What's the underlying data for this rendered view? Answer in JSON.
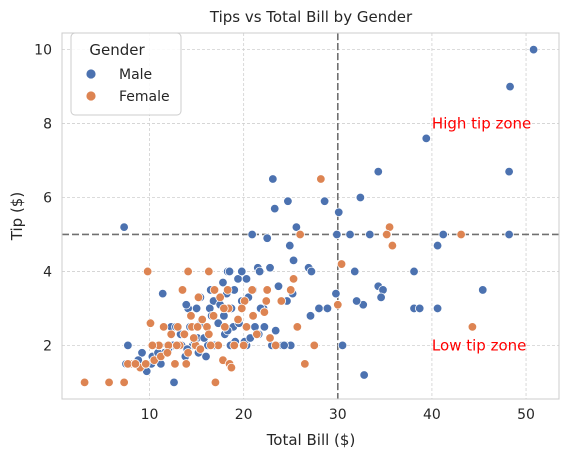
{
  "chart_data": {
    "type": "scatter",
    "title": "Tips vs Total Bill by Gender",
    "xlabel": "Total Bill ($)",
    "ylabel": "Tip ($)",
    "xlim": [
      0.7,
      53.5
    ],
    "ylim": [
      0.55,
      10.45
    ],
    "xticks": [
      10,
      20,
      30,
      40,
      50
    ],
    "yticks": [
      2,
      4,
      6,
      8,
      10
    ],
    "grid": true,
    "legend": {
      "title": "Gender",
      "position": "top-left",
      "entries": [
        "Male",
        "Female"
      ]
    },
    "reference_lines": [
      {
        "orientation": "vertical",
        "value": 30
      },
      {
        "orientation": "horizontal",
        "value": 5
      }
    ],
    "annotations": [
      {
        "text": "High tip zone",
        "x": 40,
        "y": 8,
        "color": "#ff0000"
      },
      {
        "text": "Low tip zone",
        "x": 40,
        "y": 2,
        "color": "#ff0000"
      }
    ],
    "series": [
      {
        "name": "Male",
        "color": "#4c72b0",
        "points": [
          [
            50.8,
            10.0
          ],
          [
            48.3,
            9.0
          ],
          [
            39.4,
            7.6
          ],
          [
            48.2,
            6.7
          ],
          [
            34.3,
            6.7
          ],
          [
            23.1,
            6.5
          ],
          [
            32.4,
            6.0
          ],
          [
            28.6,
            5.9
          ],
          [
            24.7,
            5.9
          ],
          [
            7.3,
            5.2
          ],
          [
            25.6,
            5.2
          ],
          [
            30.1,
            5.6
          ],
          [
            23.3,
            5.7
          ],
          [
            29.9,
            5.0
          ],
          [
            31.3,
            5.0
          ],
          [
            41.2,
            5.0
          ],
          [
            48.2,
            5.0
          ],
          [
            40.6,
            4.7
          ],
          [
            33.4,
            5.0
          ],
          [
            20.9,
            5.0
          ],
          [
            22.5,
            4.9
          ],
          [
            24.9,
            4.7
          ],
          [
            25.3,
            4.3
          ],
          [
            26.9,
            4.1
          ],
          [
            27.2,
            4.0
          ],
          [
            38.1,
            4.0
          ],
          [
            31.8,
            4.0
          ],
          [
            29.8,
            3.4
          ],
          [
            34.3,
            3.6
          ],
          [
            34.8,
            3.5
          ],
          [
            21.5,
            4.1
          ],
          [
            22.8,
            4.1
          ],
          [
            21.7,
            4.0
          ],
          [
            19.4,
            3.8
          ],
          [
            20.3,
            3.8
          ],
          [
            18.3,
            4.0
          ],
          [
            18.5,
            4.0
          ],
          [
            17.8,
            3.7
          ],
          [
            16.5,
            3.5
          ],
          [
            20.9,
            3.5
          ],
          [
            23.7,
            3.6
          ],
          [
            25.2,
            3.4
          ],
          [
            21.0,
            3.5
          ],
          [
            18.2,
            3.4
          ],
          [
            15.4,
            3.3
          ],
          [
            14.1,
            3.0
          ],
          [
            13.9,
            3.1
          ],
          [
            16.8,
            3.2
          ],
          [
            15.0,
            3.0
          ],
          [
            16.4,
            3.0
          ],
          [
            18.7,
            3.0
          ],
          [
            19.8,
            3.2
          ],
          [
            20.5,
            3.3
          ],
          [
            22.1,
            3.0
          ],
          [
            24.6,
            3.2
          ],
          [
            28.0,
            3.0
          ],
          [
            28.9,
            3.0
          ],
          [
            32.7,
            3.1
          ],
          [
            34.6,
            3.3
          ],
          [
            38.1,
            3.0
          ],
          [
            38.7,
            3.0
          ],
          [
            40.6,
            3.0
          ],
          [
            45.4,
            3.5
          ],
          [
            32.0,
            3.2
          ],
          [
            11.4,
            3.4
          ],
          [
            13.0,
            2.5
          ],
          [
            13.4,
            2.0
          ],
          [
            14.3,
            2.5
          ],
          [
            15.1,
            2.2
          ],
          [
            16.2,
            2.0
          ],
          [
            17.3,
            2.6
          ],
          [
            18.0,
            2.3
          ],
          [
            18.9,
            2.5
          ],
          [
            19.5,
            2.6
          ],
          [
            20.3,
            2.0
          ],
          [
            21.2,
            2.5
          ],
          [
            22.2,
            2.5
          ],
          [
            23.0,
            2.0
          ],
          [
            24.1,
            2.0
          ],
          [
            24.5,
            2.0
          ],
          [
            25.0,
            2.0
          ],
          [
            27.1,
            2.8
          ],
          [
            30.5,
            2.0
          ],
          [
            32.8,
            1.2
          ],
          [
            12.6,
            1.0
          ],
          [
            7.7,
            2.0
          ],
          [
            8.3,
            1.5
          ],
          [
            9.2,
            1.8
          ],
          [
            9.7,
            1.3
          ],
          [
            10.3,
            1.7
          ],
          [
            10.7,
            1.6
          ],
          [
            11.2,
            1.5
          ],
          [
            11.9,
            2.0
          ],
          [
            12.5,
            2.0
          ],
          [
            13.3,
            2.3
          ],
          [
            14.6,
            2.0
          ],
          [
            15.5,
            2.6
          ],
          [
            16.9,
            2.0
          ],
          [
            17.9,
            2.8
          ],
          [
            18.3,
            2.4
          ],
          [
            19.1,
            2.1
          ],
          [
            20.1,
            2.1
          ],
          [
            20.7,
            2.2
          ],
          [
            21.6,
            2.3
          ],
          [
            22.8,
            2.2
          ],
          [
            23.4,
            2.4
          ],
          [
            24.3,
            2.0
          ],
          [
            12.0,
            1.9
          ],
          [
            11.6,
            1.8
          ],
          [
            10.9,
            1.8
          ],
          [
            10.2,
            1.5
          ],
          [
            9.6,
            1.5
          ],
          [
            8.8,
            1.6
          ],
          [
            13.8,
            1.7
          ],
          [
            14.8,
            2.1
          ],
          [
            15.8,
            2.2
          ],
          [
            16.6,
            2.8
          ],
          [
            17.5,
            3.1
          ],
          [
            19.0,
            3.5
          ],
          [
            19.8,
            4.0
          ],
          [
            21.8,
            3.0
          ],
          [
            12.3,
            2.5
          ],
          [
            13.0,
            2.0
          ],
          [
            14.0,
            1.9
          ],
          [
            15.2,
            1.8
          ],
          [
            16.0,
            1.7
          ],
          [
            18.6,
            2.0
          ],
          [
            7.5,
            1.5
          ],
          [
            11.0,
            2.0
          ],
          [
            12.8,
            2.5
          ]
        ]
      },
      {
        "name": "Female",
        "color": "#dd8452",
        "points": [
          [
            28.2,
            6.5
          ],
          [
            35.5,
            5.2
          ],
          [
            35.2,
            5.0
          ],
          [
            43.1,
            5.0
          ],
          [
            35.8,
            4.7
          ],
          [
            26.0,
            5.0
          ],
          [
            30.4,
            4.2
          ],
          [
            25.3,
            3.8
          ],
          [
            30.0,
            3.1
          ],
          [
            9.8,
            4.0
          ],
          [
            14.1,
            4.0
          ],
          [
            16.3,
            4.0
          ],
          [
            18.3,
            3.5
          ],
          [
            18.4,
            3.0
          ],
          [
            20.9,
            3.5
          ],
          [
            20.1,
            3.2
          ],
          [
            22.5,
            3.5
          ],
          [
            22.4,
            3.2
          ],
          [
            24.0,
            3.2
          ],
          [
            25.0,
            3.5
          ],
          [
            16.9,
            3.5
          ],
          [
            15.2,
            3.3
          ],
          [
            13.5,
            3.5
          ],
          [
            17.5,
            3.3
          ],
          [
            19.4,
            2.7
          ],
          [
            20.3,
            2.5
          ],
          [
            21.0,
            2.8
          ],
          [
            22.2,
            2.9
          ],
          [
            25.7,
            2.5
          ],
          [
            27.5,
            2.0
          ],
          [
            26.5,
            1.5
          ],
          [
            44.3,
            2.5
          ],
          [
            10.1,
            2.6
          ],
          [
            11.5,
            2.5
          ],
          [
            12.3,
            2.3
          ],
          [
            13.0,
            2.5
          ],
          [
            13.7,
            2.3
          ],
          [
            14.5,
            2.5
          ],
          [
            15.6,
            2.7
          ],
          [
            16.1,
            2.5
          ],
          [
            17.3,
            2.0
          ],
          [
            18.0,
            2.5
          ],
          [
            19.0,
            2.0
          ],
          [
            20.0,
            2.0
          ],
          [
            21.4,
            2.3
          ],
          [
            23.4,
            2.0
          ],
          [
            11.0,
            2.0
          ],
          [
            12.0,
            2.0
          ],
          [
            12.7,
            1.5
          ],
          [
            13.2,
            2.0
          ],
          [
            14.1,
            1.8
          ],
          [
            14.9,
            2.0
          ],
          [
            15.4,
            1.9
          ],
          [
            16.5,
            2.0
          ],
          [
            17.8,
            1.6
          ],
          [
            18.5,
            1.5
          ],
          [
            8.0,
            1.5
          ],
          [
            9.0,
            1.4
          ],
          [
            9.6,
            1.5
          ],
          [
            10.5,
            1.6
          ],
          [
            11.2,
            1.7
          ],
          [
            3.1,
            1.0
          ],
          [
            5.7,
            1.0
          ],
          [
            7.3,
            1.0
          ],
          [
            17.0,
            1.0
          ],
          [
            7.7,
            1.5
          ],
          [
            8.5,
            1.5
          ],
          [
            10.3,
            2.0
          ],
          [
            14.7,
            2.2
          ],
          [
            16.8,
            2.8
          ],
          [
            19.8,
            3.0
          ],
          [
            12.9,
            2.0
          ],
          [
            15.1,
            2.5
          ],
          [
            17.9,
            3.0
          ],
          [
            11.9,
            1.8
          ],
          [
            13.9,
            1.5
          ],
          [
            16.3,
            2.3
          ],
          [
            18.7,
            1.4
          ],
          [
            22.8,
            2.2
          ],
          [
            14.4,
            2.8
          ]
        ]
      }
    ]
  }
}
